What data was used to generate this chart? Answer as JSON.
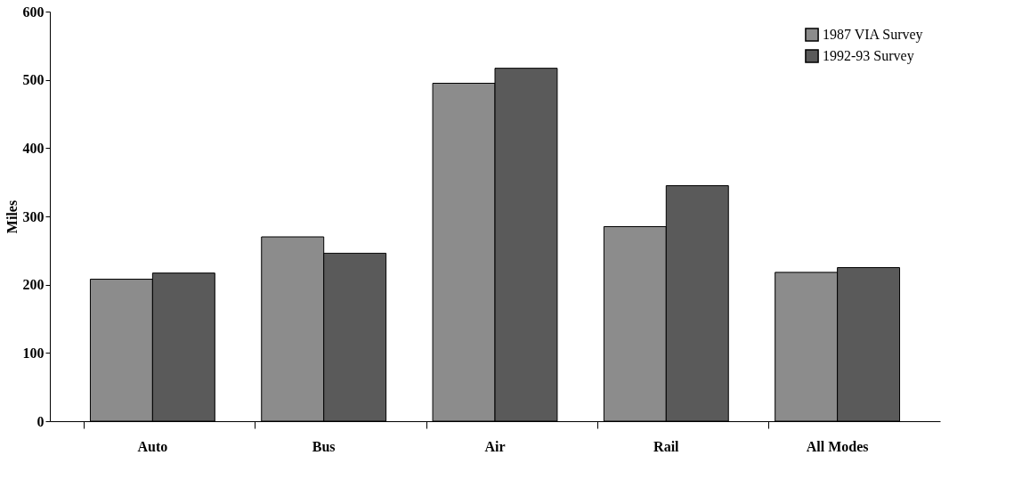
{
  "chart_data": {
    "type": "bar",
    "ylabel": "Miles",
    "categories": [
      "Auto",
      "Bus",
      "Air",
      "Rail",
      "All Modes"
    ],
    "series": [
      {
        "name": "1987 VIA Survey",
        "color": "#8c8c8c",
        "values": [
          208,
          270,
          495,
          285,
          218
        ]
      },
      {
        "name": "1992-93 Survey",
        "color": "#5a5a5a",
        "values": [
          217,
          246,
          517,
          345,
          225
        ]
      }
    ],
    "ylim": [
      0,
      600
    ],
    "yticks": [
      0,
      100,
      200,
      300,
      400,
      500,
      600
    ],
    "grid": false,
    "legend": "top right"
  }
}
